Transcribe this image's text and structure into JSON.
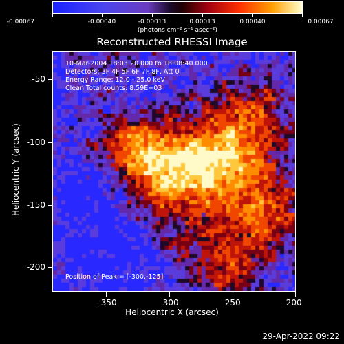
{
  "colorbar": {
    "tick_labels": [
      "-0.00067",
      "-0.00040",
      "-0.00013",
      "0.00013",
      "0.00040",
      "0.00067"
    ],
    "units": "(photons cm⁻² s⁻¹ asec⁻²)"
  },
  "plot": {
    "title": "Reconstructed RHESSI Image",
    "info_lines": [
      "10-Mar-2004 18:03:20.000 to 18:08:40.000",
      "Detectors: 3F 4F 5F 6F 7F 8F, Att 0",
      "Energy Range: 12.0 - 25.0 keV",
      "Clean     Total counts: 8.59E+03"
    ],
    "peak_text": "Position of Peak = [-300,-125]",
    "x_axis_title": "Heliocentric X (arcsec)",
    "y_axis_title": "Heliocentric Y (arcsec)",
    "x_tick_labels": [
      "-350",
      "-300",
      "-250",
      "-200"
    ],
    "y_tick_labels": [
      "-50",
      "-100",
      "-150",
      "-200"
    ]
  },
  "image_data": {
    "x_range": [
      -392,
      -200
    ],
    "y_range": [
      -30,
      -220
    ],
    "peak": [
      -300,
      -125
    ]
  },
  "timestamp": "29-Apr-2022 09:22"
}
